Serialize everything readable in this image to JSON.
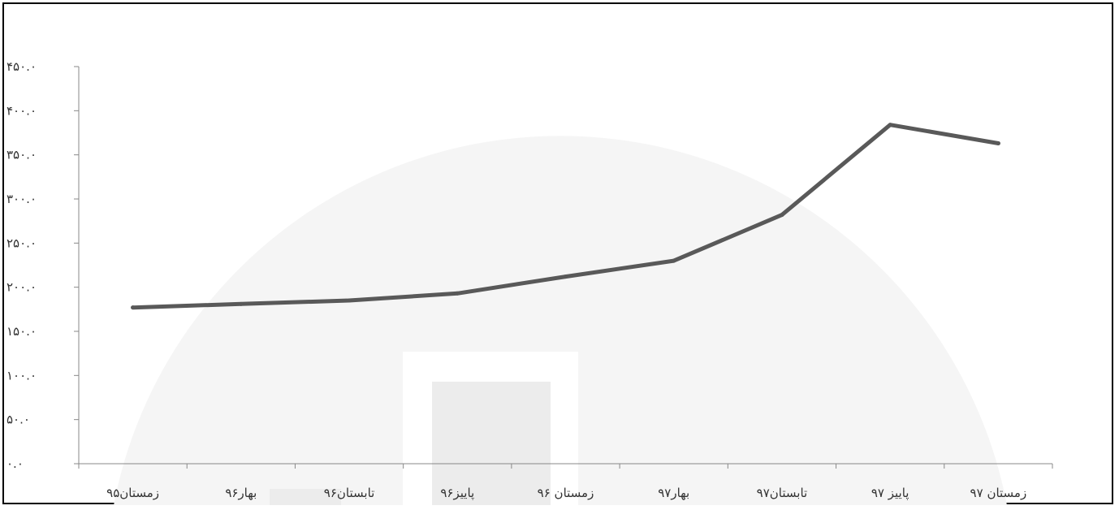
{
  "chart_data": {
    "type": "line",
    "title": "",
    "xlabel": "",
    "ylabel": "",
    "categories": [
      "زمستان۹۵",
      "بهار۹۶",
      "تابستان۹۶",
      "پاییز۹۶",
      "زمستان ۹۶",
      "بهار۹۷",
      "تابستان۹۷",
      "پاییز ۹۷",
      "زمستان ۹۷"
    ],
    "series": [
      {
        "values": [
          177,
          181,
          185,
          193,
          212,
          230,
          282,
          384,
          363
        ]
      }
    ],
    "ylim": [
      0,
      450
    ],
    "yticks": [
      0,
      50,
      100,
      150,
      200,
      250,
      300,
      350,
      400,
      450
    ],
    "ytick_labels": [
      "۰.۰",
      "۵۰.۰",
      "۱۰۰.۰",
      "۱۵۰.۰",
      "۲۰۰.۰",
      "۲۵۰.۰",
      "۳۰۰.۰",
      "۳۵۰.۰",
      "۴۰۰.۰",
      "۴۵۰.۰"
    ],
    "grid": false,
    "legend": "none",
    "line_color": "#595959",
    "axis_color": "#888888"
  }
}
